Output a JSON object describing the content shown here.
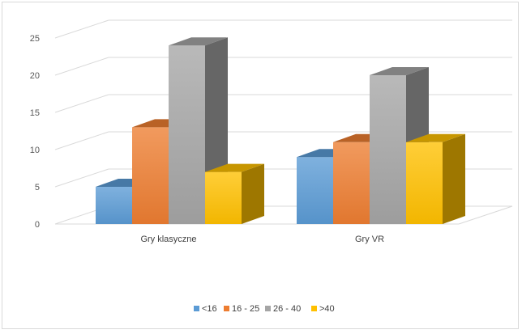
{
  "chart_data": {
    "type": "bar",
    "style": "3d-clustered-column",
    "categories": [
      "Gry klasyczne",
      "Gry VR"
    ],
    "series": [
      {
        "name": "<16",
        "values": [
          5,
          9
        ],
        "color": "#5b9bd5"
      },
      {
        "name": "16 - 25",
        "values": [
          13,
          11
        ],
        "color": "#ed7d31"
      },
      {
        "name": "26 - 40",
        "values": [
          24,
          20
        ],
        "color": "#a5a5a5"
      },
      {
        "name": ">40",
        "values": [
          7,
          11
        ],
        "color": "#ffc000"
      }
    ],
    "ylim": [
      0,
      25
    ],
    "yticks": [
      0,
      5,
      10,
      15,
      20,
      25
    ],
    "title": "",
    "xlabel": "",
    "ylabel": "",
    "grid": true,
    "legend_position": "bottom"
  }
}
